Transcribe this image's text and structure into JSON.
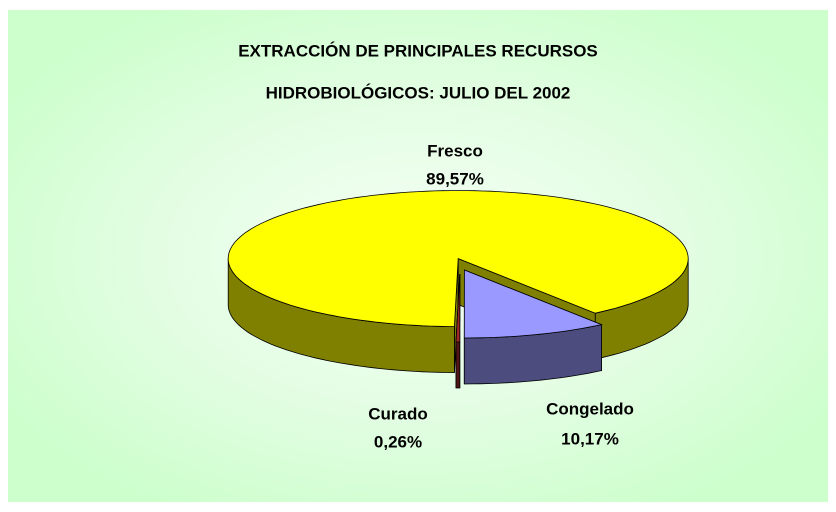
{
  "chart_data": {
    "type": "pie3d",
    "title": [
      "EXTRACCIÓN DE PRINCIPALES RECURSOS",
      "HIDROBIOLÓGICOS:  JULIO DEL 2002"
    ],
    "categories": [
      "Fresco",
      "Congelado",
      "Curado"
    ],
    "values": [
      89.57,
      10.17,
      0.26
    ],
    "value_labels": [
      "89,57%",
      "10,17%",
      "0,26%"
    ],
    "colors": [
      "#ffff00",
      "#9999ff",
      "#a02828"
    ]
  }
}
